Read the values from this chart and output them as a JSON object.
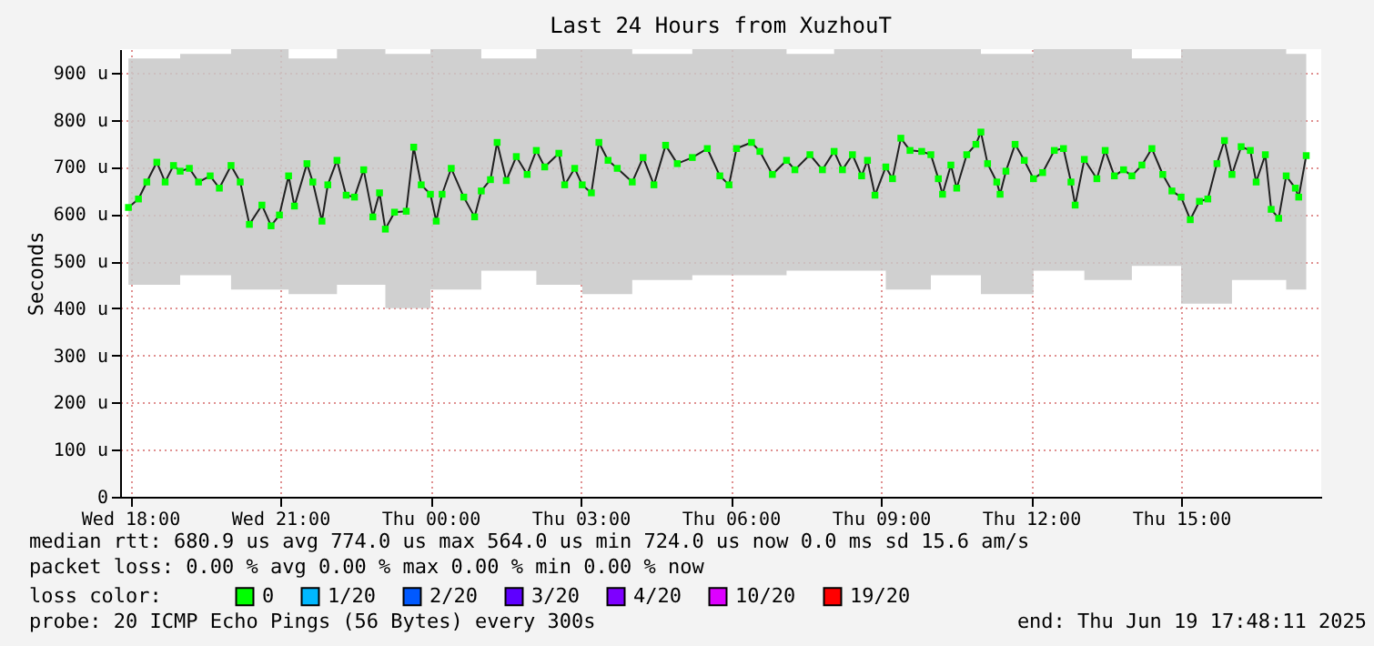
{
  "chart_data": {
    "type": "line",
    "title": "Last 24 Hours from XuzhouT",
    "ylabel": "Seconds",
    "xlim": [
      "2025-06-18T17:48",
      "2025-06-19T17:48"
    ],
    "ylim": [
      0,
      950
    ],
    "xticks": [
      {
        "value": "2025-06-18T18:00",
        "label": "Wed 18:00"
      },
      {
        "value": "2025-06-18T21:00",
        "label": "Wed 21:00"
      },
      {
        "value": "2025-06-19T00:00",
        "label": "Thu 00:00"
      },
      {
        "value": "2025-06-19T03:00",
        "label": "Thu 03:00"
      },
      {
        "value": "2025-06-19T06:00",
        "label": "Thu 06:00"
      },
      {
        "value": "2025-06-19T09:00",
        "label": "Thu 09:00"
      },
      {
        "value": "2025-06-19T12:00",
        "label": "Thu 12:00"
      },
      {
        "value": "2025-06-19T15:00",
        "label": "Thu 15:00"
      }
    ],
    "yticks": [
      0,
      {
        "value": 100,
        "label": "100 u"
      },
      {
        "value": 200,
        "label": "200 u"
      },
      {
        "value": 300,
        "label": "300 u"
      },
      {
        "value": 400,
        "label": "400 u"
      },
      {
        "value": 500,
        "label": "500 u"
      },
      {
        "value": 600,
        "label": "600 u"
      },
      {
        "value": 700,
        "label": "700 u"
      },
      {
        "value": 800,
        "label": "800 u"
      },
      {
        "value": 900,
        "label": "900 u"
      }
    ],
    "grid": true,
    "marker": "square",
    "line_style": "solid",
    "legend": "bottom",
    "legend_title": "loss color:",
    "series": [
      {
        "name": "0",
        "color": "#00ff00",
        "x": [
          "2025-06-18T17:58",
          "2025-06-18T18:10",
          "2025-06-18T18:20",
          "2025-06-18T18:32",
          "2025-06-18T18:42",
          "2025-06-18T18:52",
          "2025-06-18T19:00",
          "2025-06-18T19:11",
          "2025-06-18T19:22",
          "2025-06-18T19:36",
          "2025-06-18T19:47",
          "2025-06-18T20:01",
          "2025-06-18T20:12",
          "2025-06-18T20:23",
          "2025-06-18T20:38",
          "2025-06-18T20:49",
          "2025-06-18T20:59",
          "2025-06-18T21:10",
          "2025-06-18T21:17",
          "2025-06-18T21:32",
          "2025-06-18T21:39",
          "2025-06-18T21:50",
          "2025-06-18T21:57",
          "2025-06-18T22:08",
          "2025-06-18T22:19",
          "2025-06-18T22:29",
          "2025-06-18T22:40",
          "2025-06-18T22:51",
          "2025-06-18T22:59",
          "2025-06-18T23:06",
          "2025-06-18T23:17",
          "2025-06-18T23:31",
          "2025-06-18T23:40",
          "2025-06-18T23:49",
          "2025-06-19T00:00",
          "2025-06-19T00:07",
          "2025-06-19T00:14",
          "2025-06-19T00:25",
          "2025-06-19T00:40",
          "2025-06-19T00:53",
          "2025-06-19T01:01",
          "2025-06-19T01:12",
          "2025-06-19T01:20",
          "2025-06-19T01:31",
          "2025-06-19T01:43",
          "2025-06-19T01:56",
          "2025-06-19T02:07",
          "2025-06-19T02:17",
          "2025-06-19T02:34",
          "2025-06-19T02:41",
          "2025-06-19T02:53",
          "2025-06-19T03:02",
          "2025-06-19T03:13",
          "2025-06-19T03:22",
          "2025-06-19T03:33",
          "2025-06-19T03:44",
          "2025-06-19T04:02",
          "2025-06-19T04:15",
          "2025-06-19T04:28",
          "2025-06-19T04:42",
          "2025-06-19T04:56",
          "2025-06-19T05:14",
          "2025-06-19T05:32",
          "2025-06-19T05:47",
          "2025-06-19T05:58",
          "2025-06-19T06:07",
          "2025-06-19T06:25",
          "2025-06-19T06:35",
          "2025-06-19T06:50",
          "2025-06-19T07:07",
          "2025-06-19T07:17",
          "2025-06-19T07:35",
          "2025-06-19T07:50",
          "2025-06-19T08:04",
          "2025-06-19T08:14",
          "2025-06-19T08:26",
          "2025-06-19T08:37",
          "2025-06-19T08:44",
          "2025-06-19T08:53",
          "2025-06-19T09:06",
          "2025-06-19T09:14",
          "2025-06-19T09:24",
          "2025-06-19T09:35",
          "2025-06-19T09:49",
          "2025-06-19T10:00",
          "2025-06-19T10:09",
          "2025-06-19T10:14",
          "2025-06-19T10:24",
          "2025-06-19T10:31",
          "2025-06-19T10:43",
          "2025-06-19T10:54",
          "2025-06-19T11:00",
          "2025-06-19T11:08",
          "2025-06-19T11:19",
          "2025-06-19T11:23",
          "2025-06-19T11:30",
          "2025-06-19T11:41",
          "2025-06-19T11:52",
          "2025-06-19T12:03",
          "2025-06-19T12:14",
          "2025-06-19T12:28",
          "2025-06-19T12:39",
          "2025-06-19T12:48",
          "2025-06-19T12:53",
          "2025-06-19T13:04",
          "2025-06-19T13:19",
          "2025-06-19T13:29",
          "2025-06-19T13:40",
          "2025-06-19T13:51",
          "2025-06-19T14:01",
          "2025-06-19T14:13",
          "2025-06-19T14:25",
          "2025-06-19T14:38",
          "2025-06-19T14:49",
          "2025-06-19T15:00",
          "2025-06-19T15:11",
          "2025-06-19T15:22",
          "2025-06-19T15:32",
          "2025-06-19T15:43",
          "2025-06-19T15:52",
          "2025-06-19T16:01",
          "2025-06-19T16:12",
          "2025-06-19T16:23",
          "2025-06-19T16:30",
          "2025-06-19T16:41",
          "2025-06-19T16:48",
          "2025-06-19T16:57",
          "2025-06-19T17:06",
          "2025-06-19T17:17",
          "2025-06-19T17:21",
          "2025-06-19T17:30"
        ],
        "values": [
          614,
          632,
          668,
          710,
          668,
          703,
          691,
          697,
          668,
          681,
          655,
          703,
          668,
          578,
          619,
          575,
          598,
          681,
          617,
          707,
          668,
          585,
          662,
          714,
          640,
          636,
          694,
          594,
          645,
          568,
          604,
          606,
          742,
          662,
          642,
          585,
          642,
          697,
          636,
          594,
          649,
          673,
          752,
          671,
          722,
          684,
          735,
          700,
          729,
          662,
          697,
          662,
          645,
          752,
          714,
          697,
          668,
          720,
          662,
          746,
          707,
          720,
          739,
          681,
          662,
          739,
          752,
          733,
          684,
          714,
          694,
          726,
          694,
          733,
          694,
          726,
          681,
          714,
          640,
          700,
          675,
          761,
          735,
          733,
          726,
          675,
          642,
          704,
          655,
          726,
          748,
          774,
          707,
          668,
          642,
          691,
          748,
          714,
          675,
          688,
          735,
          739,
          668,
          619,
          716,
          675,
          735,
          681,
          694,
          681,
          704,
          739,
          684,
          649,
          636,
          588,
          627,
          632,
          707,
          756,
          684,
          743,
          735,
          668,
          726,
          610,
          591,
          681,
          655,
          636,
          724
        ],
        "lower": [
          450,
          450,
          450,
          450,
          450,
          450,
          470,
          470,
          470,
          470,
          470,
          440,
          440,
          440,
          440,
          440,
          440,
          430,
          430,
          430,
          430,
          430,
          430,
          450,
          450,
          450,
          450,
          450,
          450,
          400,
          400,
          400,
          400,
          400,
          440,
          440,
          440,
          440,
          440,
          440,
          480,
          480,
          480,
          480,
          480,
          480,
          450,
          450,
          450,
          450,
          450,
          430,
          430,
          430,
          430,
          430,
          460,
          460,
          460,
          460,
          460,
          470,
          470,
          470,
          470,
          470,
          470,
          470,
          470,
          480,
          480,
          480,
          480,
          480,
          480,
          480,
          480,
          480,
          480,
          440,
          440,
          440,
          440,
          440,
          470,
          470,
          470,
          470,
          470,
          470,
          470,
          430,
          430,
          430,
          430,
          430,
          430,
          430,
          480,
          480,
          480,
          480,
          480,
          480,
          460,
          460,
          460,
          460,
          460,
          490,
          490,
          490,
          490,
          490,
          410,
          410,
          410,
          410,
          410,
          410,
          460,
          460,
          460,
          460,
          460,
          460,
          460,
          440,
          440,
          440,
          440
        ],
        "upper": [
          930,
          930,
          930,
          930,
          930,
          930,
          940,
          940,
          940,
          940,
          940,
          950,
          950,
          950,
          950,
          950,
          950,
          930,
          930,
          930,
          930,
          930,
          930,
          950,
          950,
          950,
          950,
          950,
          950,
          940,
          940,
          940,
          940,
          940,
          950,
          950,
          950,
          950,
          950,
          950,
          930,
          930,
          930,
          930,
          930,
          930,
          950,
          950,
          950,
          950,
          950,
          950,
          950,
          950,
          950,
          950,
          940,
          940,
          940,
          940,
          940,
          950,
          950,
          950,
          950,
          950,
          950,
          950,
          950,
          940,
          940,
          940,
          940,
          950,
          950,
          950,
          950,
          950,
          950,
          950,
          950,
          950,
          950,
          950,
          950,
          950,
          950,
          950,
          950,
          950,
          950,
          940,
          940,
          940,
          940,
          940,
          940,
          940,
          950,
          950,
          950,
          950,
          950,
          950,
          950,
          950,
          950,
          950,
          950,
          930,
          930,
          930,
          930,
          930,
          950,
          950,
          950,
          950,
          950,
          950,
          950,
          950,
          950,
          950,
          950,
          950,
          950,
          940,
          940,
          940,
          940
        ]
      },
      {
        "name": "1/20",
        "color": "#00b8ff"
      },
      {
        "name": "2/20",
        "color": "#0059ff"
      },
      {
        "name": "3/20",
        "color": "#5e00ff"
      },
      {
        "name": "4/20",
        "color": "#7e00ff"
      },
      {
        "name": "10/20",
        "color": "#dd00ff"
      },
      {
        "name": "19/20",
        "color": "#ff0000"
      }
    ],
    "annotations": [
      "median rtt:  680.9 us avg  774.0 us max  564.0 us min  724.0 us now  0.0 ms sd  15.6  am/s",
      "packet loss: 0.00 % avg  0.00 % max  0.00 % min  0.00 % now",
      "probe:       20 ICMP Echo Pings (56 Bytes) every 300s",
      "end: Thu Jun 19 17:48:11 2025"
    ]
  }
}
